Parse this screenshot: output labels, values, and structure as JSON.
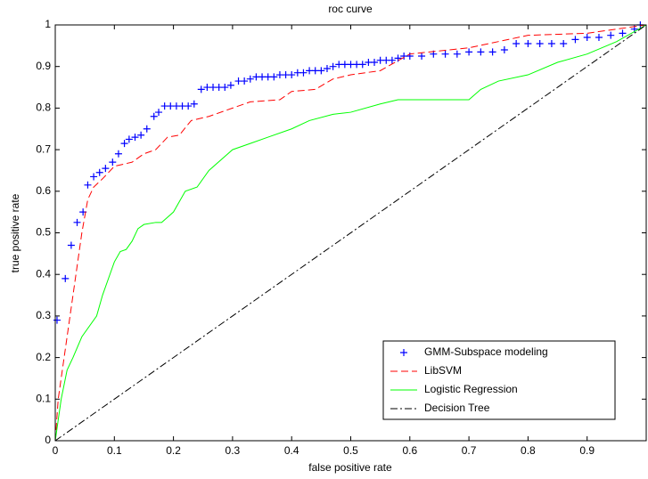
{
  "chart_data": {
    "type": "line",
    "title": "roc curve",
    "x_label": "false positive rate",
    "y_label": "true positive rate",
    "xlim": [
      0,
      1
    ],
    "ylim": [
      0,
      1
    ],
    "xticks": [
      0,
      0.1,
      0.2,
      0.3,
      0.4,
      0.5,
      0.6,
      0.7,
      0.8,
      0.9
    ],
    "yticks": [
      0,
      0.1,
      0.2,
      0.3,
      0.4,
      0.5,
      0.6,
      0.7,
      0.8,
      0.9,
      1
    ],
    "grid": false,
    "legend": "lower right",
    "series": [
      {
        "name": "GMM-Subspace modeling",
        "color": "#0000ff",
        "marker": "+",
        "line_style": "none",
        "x": [
          0.003,
          0.017,
          0.027,
          0.037,
          0.047,
          0.055,
          0.065,
          0.075,
          0.085,
          0.097,
          0.107,
          0.117,
          0.125,
          0.135,
          0.145,
          0.155,
          0.167,
          0.175,
          0.185,
          0.195,
          0.205,
          0.215,
          0.225,
          0.235,
          0.247,
          0.257,
          0.267,
          0.277,
          0.287,
          0.297,
          0.31,
          0.32,
          0.33,
          0.34,
          0.35,
          0.36,
          0.37,
          0.38,
          0.39,
          0.4,
          0.41,
          0.42,
          0.43,
          0.44,
          0.45,
          0.46,
          0.47,
          0.48,
          0.49,
          0.5,
          0.51,
          0.52,
          0.53,
          0.54,
          0.55,
          0.56,
          0.57,
          0.58,
          0.59,
          0.6,
          0.62,
          0.64,
          0.66,
          0.68,
          0.7,
          0.72,
          0.74,
          0.76,
          0.78,
          0.8,
          0.82,
          0.84,
          0.86,
          0.88,
          0.9,
          0.92,
          0.94,
          0.96,
          0.98,
          0.99
        ],
        "values": [
          0.29,
          0.39,
          0.47,
          0.525,
          0.55,
          0.615,
          0.635,
          0.645,
          0.655,
          0.67,
          0.69,
          0.715,
          0.725,
          0.73,
          0.735,
          0.75,
          0.78,
          0.79,
          0.805,
          0.805,
          0.805,
          0.805,
          0.805,
          0.81,
          0.845,
          0.85,
          0.85,
          0.85,
          0.85,
          0.855,
          0.865,
          0.865,
          0.87,
          0.875,
          0.875,
          0.875,
          0.875,
          0.88,
          0.88,
          0.88,
          0.885,
          0.885,
          0.89,
          0.89,
          0.89,
          0.895,
          0.9,
          0.905,
          0.905,
          0.905,
          0.905,
          0.905,
          0.91,
          0.91,
          0.915,
          0.915,
          0.915,
          0.92,
          0.925,
          0.925,
          0.925,
          0.93,
          0.93,
          0.93,
          0.935,
          0.935,
          0.935,
          0.94,
          0.955,
          0.955,
          0.955,
          0.955,
          0.955,
          0.965,
          0.97,
          0.97,
          0.975,
          0.98,
          0.99,
          1
        ]
      },
      {
        "name": "LibSVM",
        "color": "#ff0000",
        "marker": "none",
        "line_style": "dashed",
        "x": [
          0,
          0.005,
          0.015,
          0.025,
          0.035,
          0.045,
          0.055,
          0.065,
          0.08,
          0.1,
          0.13,
          0.15,
          0.17,
          0.19,
          0.21,
          0.23,
          0.26,
          0.3,
          0.33,
          0.38,
          0.4,
          0.44,
          0.47,
          0.5,
          0.55,
          0.6,
          0.7,
          0.75,
          0.8,
          0.9,
          0.95,
          1
        ],
        "values": [
          0,
          0.1,
          0.2,
          0.3,
          0.4,
          0.5,
          0.58,
          0.61,
          0.63,
          0.66,
          0.67,
          0.69,
          0.7,
          0.73,
          0.735,
          0.77,
          0.78,
          0.8,
          0.815,
          0.82,
          0.84,
          0.845,
          0.87,
          0.88,
          0.89,
          0.93,
          0.945,
          0.96,
          0.975,
          0.98,
          0.99,
          1
        ]
      },
      {
        "name": "Logistic Regression",
        "color": "#00ff00",
        "marker": "none",
        "line_style": "solid",
        "x": [
          0,
          0.01,
          0.02,
          0.03,
          0.045,
          0.07,
          0.08,
          0.09,
          0.1,
          0.11,
          0.12,
          0.13,
          0.14,
          0.15,
          0.17,
          0.18,
          0.2,
          0.22,
          0.24,
          0.26,
          0.3,
          0.33,
          0.36,
          0.4,
          0.43,
          0.47,
          0.5,
          0.55,
          0.58,
          0.7,
          0.72,
          0.75,
          0.8,
          0.85,
          0.9,
          0.95,
          1
        ],
        "values": [
          0,
          0.1,
          0.17,
          0.2,
          0.25,
          0.3,
          0.35,
          0.39,
          0.43,
          0.455,
          0.46,
          0.48,
          0.51,
          0.52,
          0.525,
          0.525,
          0.55,
          0.6,
          0.61,
          0.65,
          0.7,
          0.715,
          0.73,
          0.75,
          0.77,
          0.785,
          0.79,
          0.81,
          0.82,
          0.82,
          0.845,
          0.865,
          0.88,
          0.91,
          0.93,
          0.96,
          1
        ]
      },
      {
        "name": "Decision Tree",
        "color": "#000000",
        "marker": "none",
        "line_style": "dashdot",
        "x": [
          0,
          1
        ],
        "values": [
          0,
          1
        ]
      }
    ]
  }
}
